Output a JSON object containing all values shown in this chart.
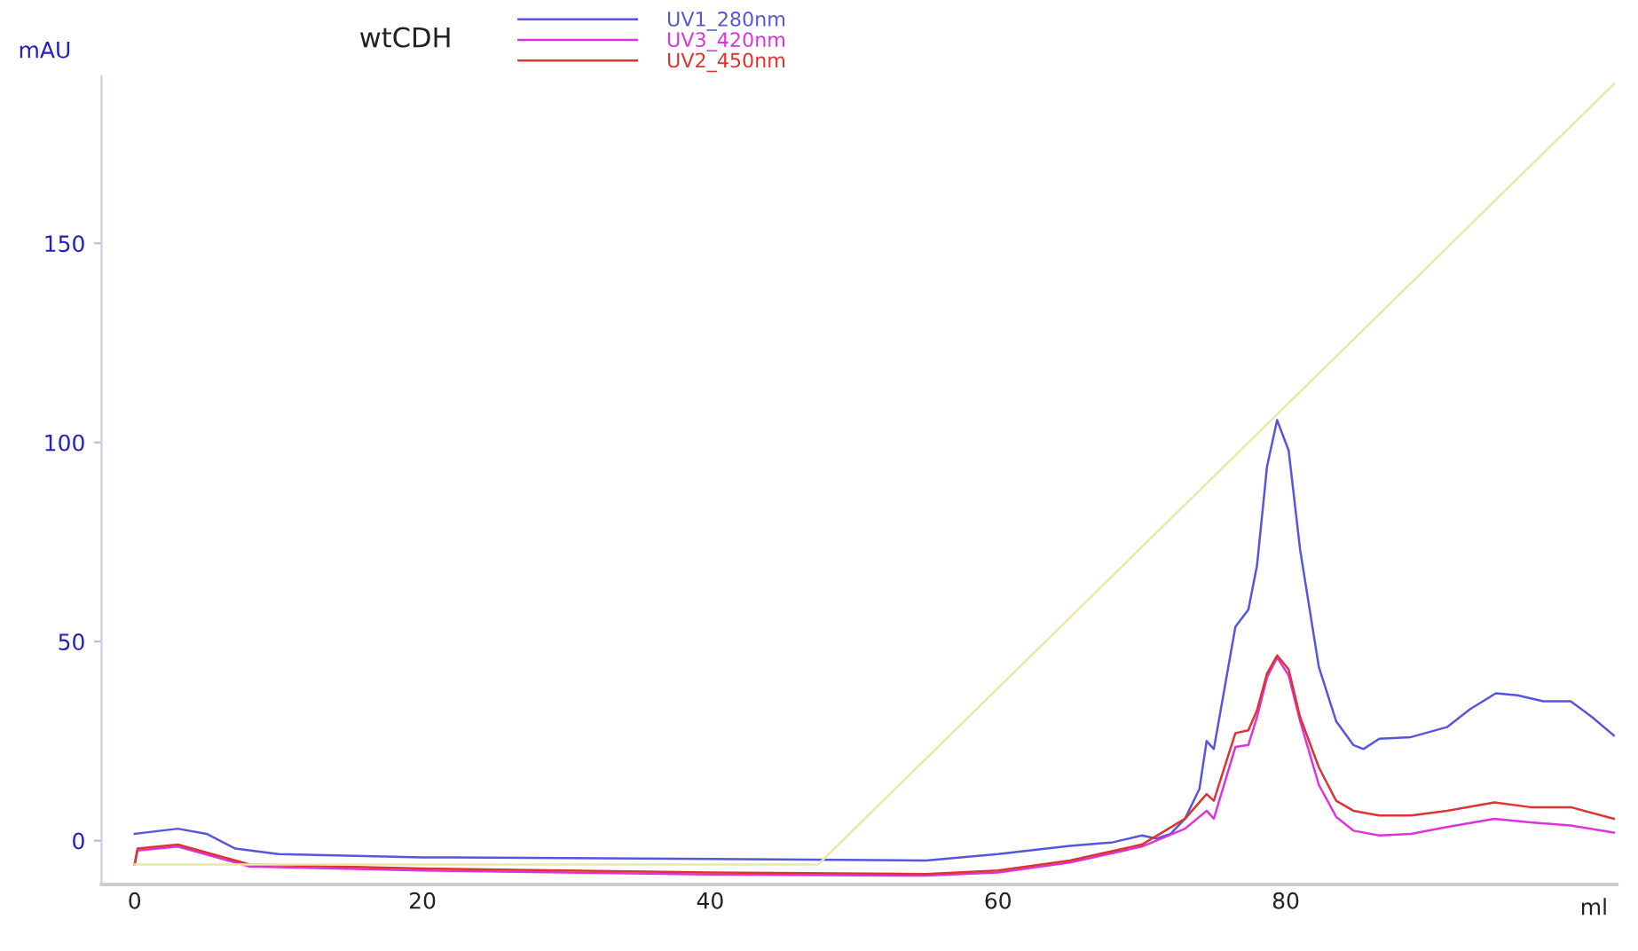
{
  "chart_data": {
    "type": "line",
    "xlabel": "ml",
    "ylabel": "mAU",
    "legend_title": "wtCDH",
    "legend": "top",
    "xlim": [
      -2.3,
      103
    ],
    "ylim": [
      -11,
      192
    ],
    "xticks": [
      0,
      20,
      40,
      60,
      80
    ],
    "yticks": [
      0,
      50,
      100,
      150
    ],
    "grid": false,
    "marker": "none",
    "line_style": "solid",
    "series": [
      {
        "name": "UV1_280nm",
        "color": "#5555dd",
        "x": [
          0,
          3,
          5,
          7,
          10,
          20,
          40,
          55,
          60,
          65,
          68,
          70,
          71,
          72,
          73,
          74,
          74.5,
          75,
          76.5,
          77.4,
          78,
          78.7,
          79.4,
          80.2,
          81,
          82.3,
          83.5,
          84.7,
          85.4,
          86.5,
          88.7,
          91.2,
          92.8,
          94.6,
          96.1,
          97.9,
          99.8,
          101.3,
          102.8
        ],
        "values": [
          1.7,
          3,
          1.7,
          -2,
          -3.4,
          -4.2,
          -4.6,
          -5,
          -3.4,
          -1.3,
          -0.4,
          1.3,
          0.5,
          1.7,
          5.5,
          13,
          25,
          23,
          53.7,
          58,
          69,
          94,
          105.6,
          98,
          73,
          43.6,
          30,
          24,
          23,
          25.6,
          26,
          28.5,
          33,
          37,
          36.5,
          35,
          35,
          31,
          26.4
        ]
      },
      {
        "name": "UV3_420nm",
        "color": "#dd33dd",
        "x": [
          0,
          0.2,
          3,
          6,
          8,
          20,
          40,
          55,
          60,
          65,
          70,
          73,
          74.5,
          75,
          76.5,
          77.4,
          78,
          78.7,
          79.4,
          80.2,
          81,
          82.3,
          83.5,
          84.7,
          86.5,
          88.7,
          91.2,
          94.5,
          97,
          99.8,
          102.8
        ],
        "values": [
          -6,
          -2.5,
          -1.5,
          -4.5,
          -6.5,
          -7.5,
          -8.5,
          -8.8,
          -8,
          -5.5,
          -1.5,
          3,
          7.5,
          5.5,
          23.5,
          24,
          31,
          41,
          46,
          41.5,
          30,
          14,
          6,
          2.5,
          1.3,
          1.7,
          3.4,
          5.5,
          4.6,
          3.8,
          2
        ]
      },
      {
        "name": "UV2_450nm",
        "color": "#dd3333",
        "x": [
          0,
          0.2,
          3,
          6,
          8,
          20,
          40,
          55,
          60,
          65,
          70,
          73,
          74.5,
          75,
          76.5,
          77.4,
          78,
          78.7,
          79.4,
          80.2,
          81,
          82.3,
          83.5,
          84.7,
          86.5,
          88.7,
          91.2,
          94.5,
          97,
          99.8,
          102.8
        ],
        "values": [
          -6,
          -2,
          -1,
          -4,
          -6,
          -7,
          -8,
          -8.4,
          -7.5,
          -5,
          -1,
          5.5,
          11.7,
          10,
          27,
          27.7,
          32.7,
          42,
          46.5,
          43,
          31,
          18.4,
          10,
          7.5,
          6.3,
          6.3,
          7.5,
          9.6,
          8.4,
          8.4,
          5.5
        ]
      },
      {
        "color": "#e8e8a8",
        "x": [
          0,
          47.5,
          102.8
        ],
        "values": [
          -6,
          -6,
          190
        ]
      }
    ]
  }
}
